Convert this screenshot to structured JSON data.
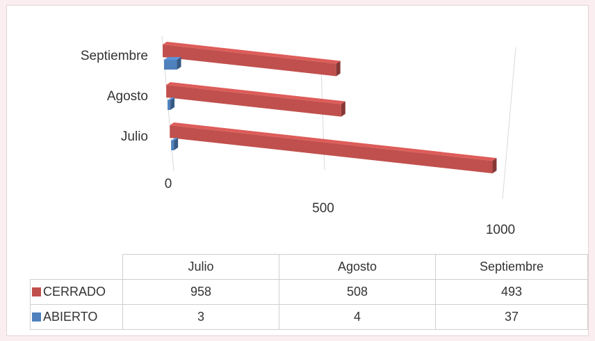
{
  "chart_data": {
    "type": "bar",
    "orientation": "horizontal",
    "style": "3d",
    "categories": [
      "Julio",
      "Agosto",
      "Septiembre"
    ],
    "series": [
      {
        "name": "CERRADO",
        "color": "#c0504d",
        "values": [
          958,
          508,
          493
        ]
      },
      {
        "name": "ABIERTO",
        "color": "#4f81bd",
        "values": [
          3,
          4,
          37
        ]
      }
    ],
    "xlim": [
      0,
      1000
    ],
    "x_ticks": [
      "0",
      "500",
      "1000"
    ],
    "legend": "data-table below chart",
    "gridlines": true
  },
  "table": {
    "headers": [
      "Julio",
      "Agosto",
      "Septiembre"
    ],
    "rows": [
      {
        "label": "CERRADO",
        "cells": [
          "958",
          "508",
          "493"
        ]
      },
      {
        "label": "ABIERTO",
        "cells": [
          "3",
          "4",
          "37"
        ]
      }
    ]
  }
}
